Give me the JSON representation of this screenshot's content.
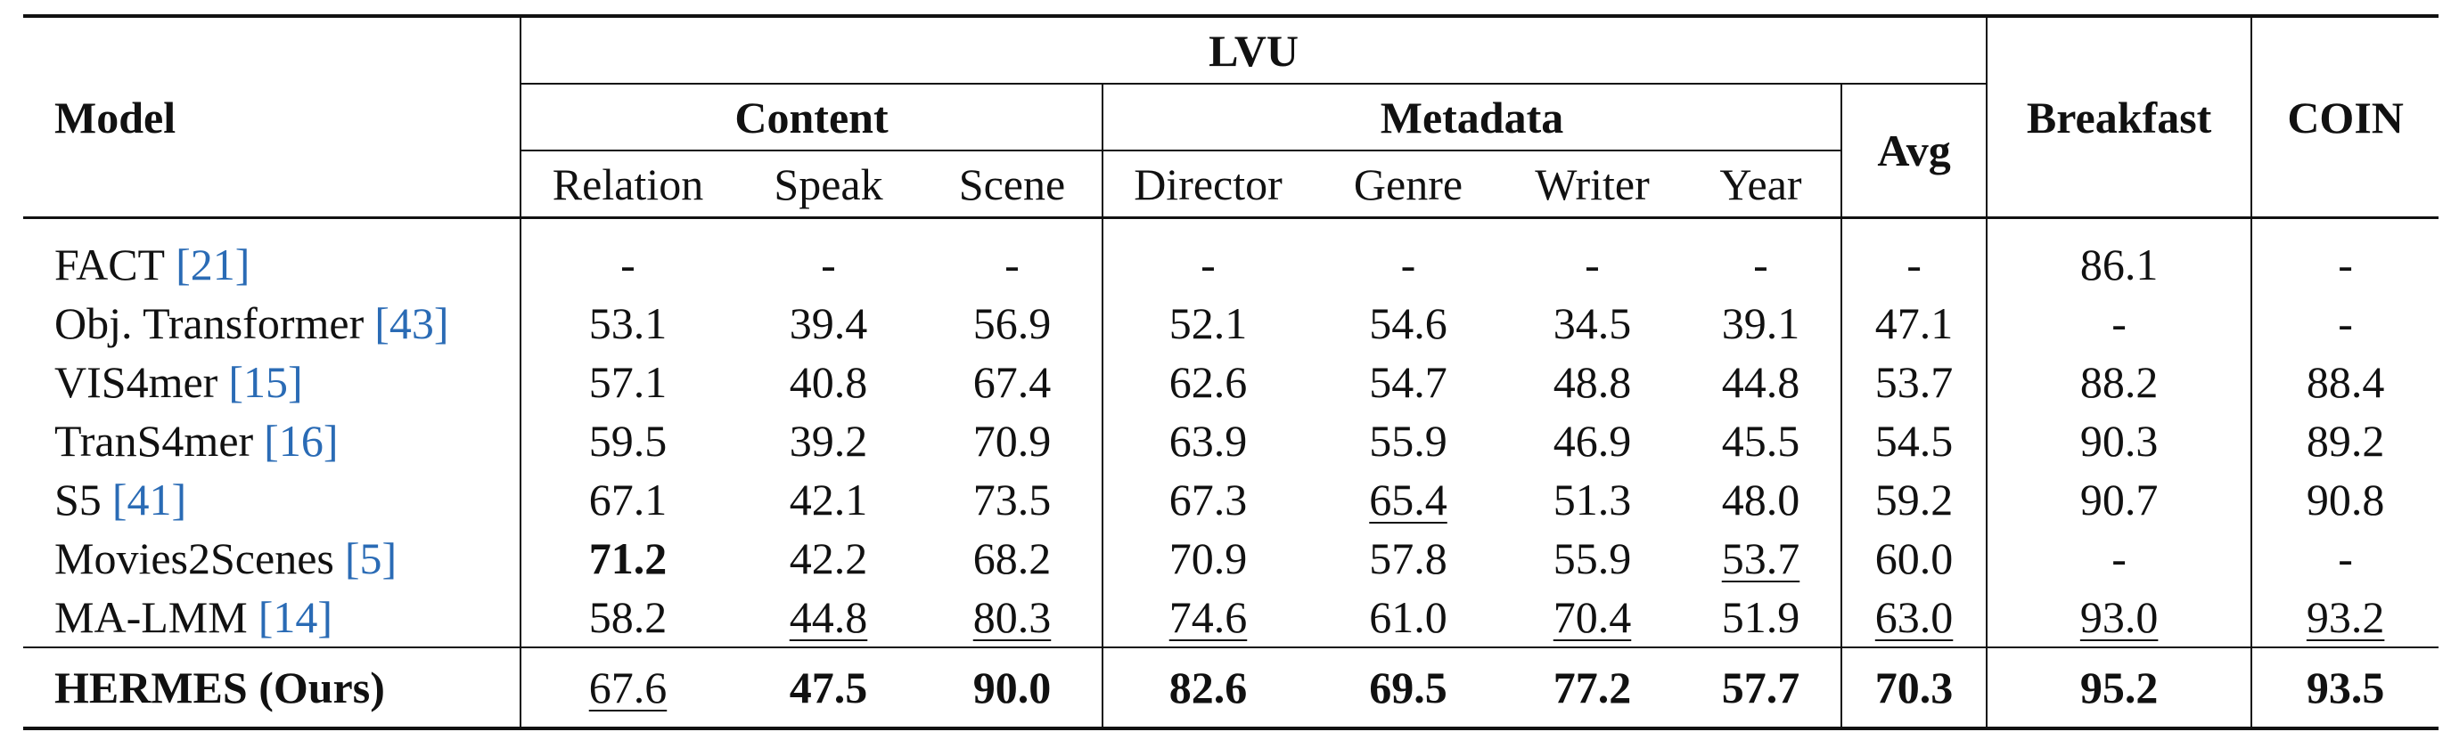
{
  "header": {
    "model": "Model",
    "group": "LVU",
    "content": "Content",
    "metadata": "Metadata",
    "avg": "Avg",
    "breakfast": "Breakfast",
    "coin": "COIN",
    "content_cols": [
      "Relation",
      "Speak",
      "Scene"
    ],
    "metadata_cols": [
      "Director",
      "Genre",
      "Writer",
      "Year"
    ]
  },
  "rows": [
    {
      "name": "FACT",
      "ref": "[21]",
      "values": [
        "-",
        "-",
        "-",
        "-",
        "-",
        "-",
        "-",
        "-",
        "86.1",
        "-"
      ],
      "bold": [],
      "underline": []
    },
    {
      "name": "Obj. Transformer",
      "ref": "[43]",
      "values": [
        "53.1",
        "39.4",
        "56.9",
        "52.1",
        "54.6",
        "34.5",
        "39.1",
        "47.1",
        "-",
        "-"
      ],
      "bold": [],
      "underline": []
    },
    {
      "name": "VIS4mer",
      "ref": "[15]",
      "values": [
        "57.1",
        "40.8",
        "67.4",
        "62.6",
        "54.7",
        "48.8",
        "44.8",
        "53.7",
        "88.2",
        "88.4"
      ],
      "bold": [],
      "underline": []
    },
    {
      "name": "TranS4mer",
      "ref": "[16]",
      "values": [
        "59.5",
        "39.2",
        "70.9",
        "63.9",
        "55.9",
        "46.9",
        "45.5",
        "54.5",
        "90.3",
        "89.2"
      ],
      "bold": [],
      "underline": []
    },
    {
      "name": "S5",
      "ref": "[41]",
      "values": [
        "67.1",
        "42.1",
        "73.5",
        "67.3",
        "65.4",
        "51.3",
        "48.0",
        "59.2",
        "90.7",
        "90.8"
      ],
      "bold": [],
      "underline": [
        4
      ]
    },
    {
      "name": "Movies2Scenes",
      "ref": "[5]",
      "values": [
        "71.2",
        "42.2",
        "68.2",
        "70.9",
        "57.8",
        "55.9",
        "53.7",
        "60.0",
        "-",
        "-"
      ],
      "bold": [
        0
      ],
      "underline": [
        6
      ]
    },
    {
      "name": "MA-LMM",
      "ref": "[14]",
      "values": [
        "58.2",
        "44.8",
        "80.3",
        "74.6",
        "61.0",
        "70.4",
        "51.9",
        "63.0",
        "93.0",
        "93.2"
      ],
      "bold": [],
      "underline": [
        1,
        2,
        3,
        5,
        7,
        8,
        9
      ]
    },
    {
      "name": "HERMES (Ours)",
      "name_bold": true,
      "values": [
        "67.6",
        "47.5",
        "90.0",
        "82.6",
        "69.5",
        "77.2",
        "57.7",
        "70.3",
        "95.2",
        "93.5"
      ],
      "bold": [
        1,
        2,
        3,
        4,
        5,
        6,
        7,
        8,
        9
      ],
      "underline": [
        0
      ]
    }
  ]
}
